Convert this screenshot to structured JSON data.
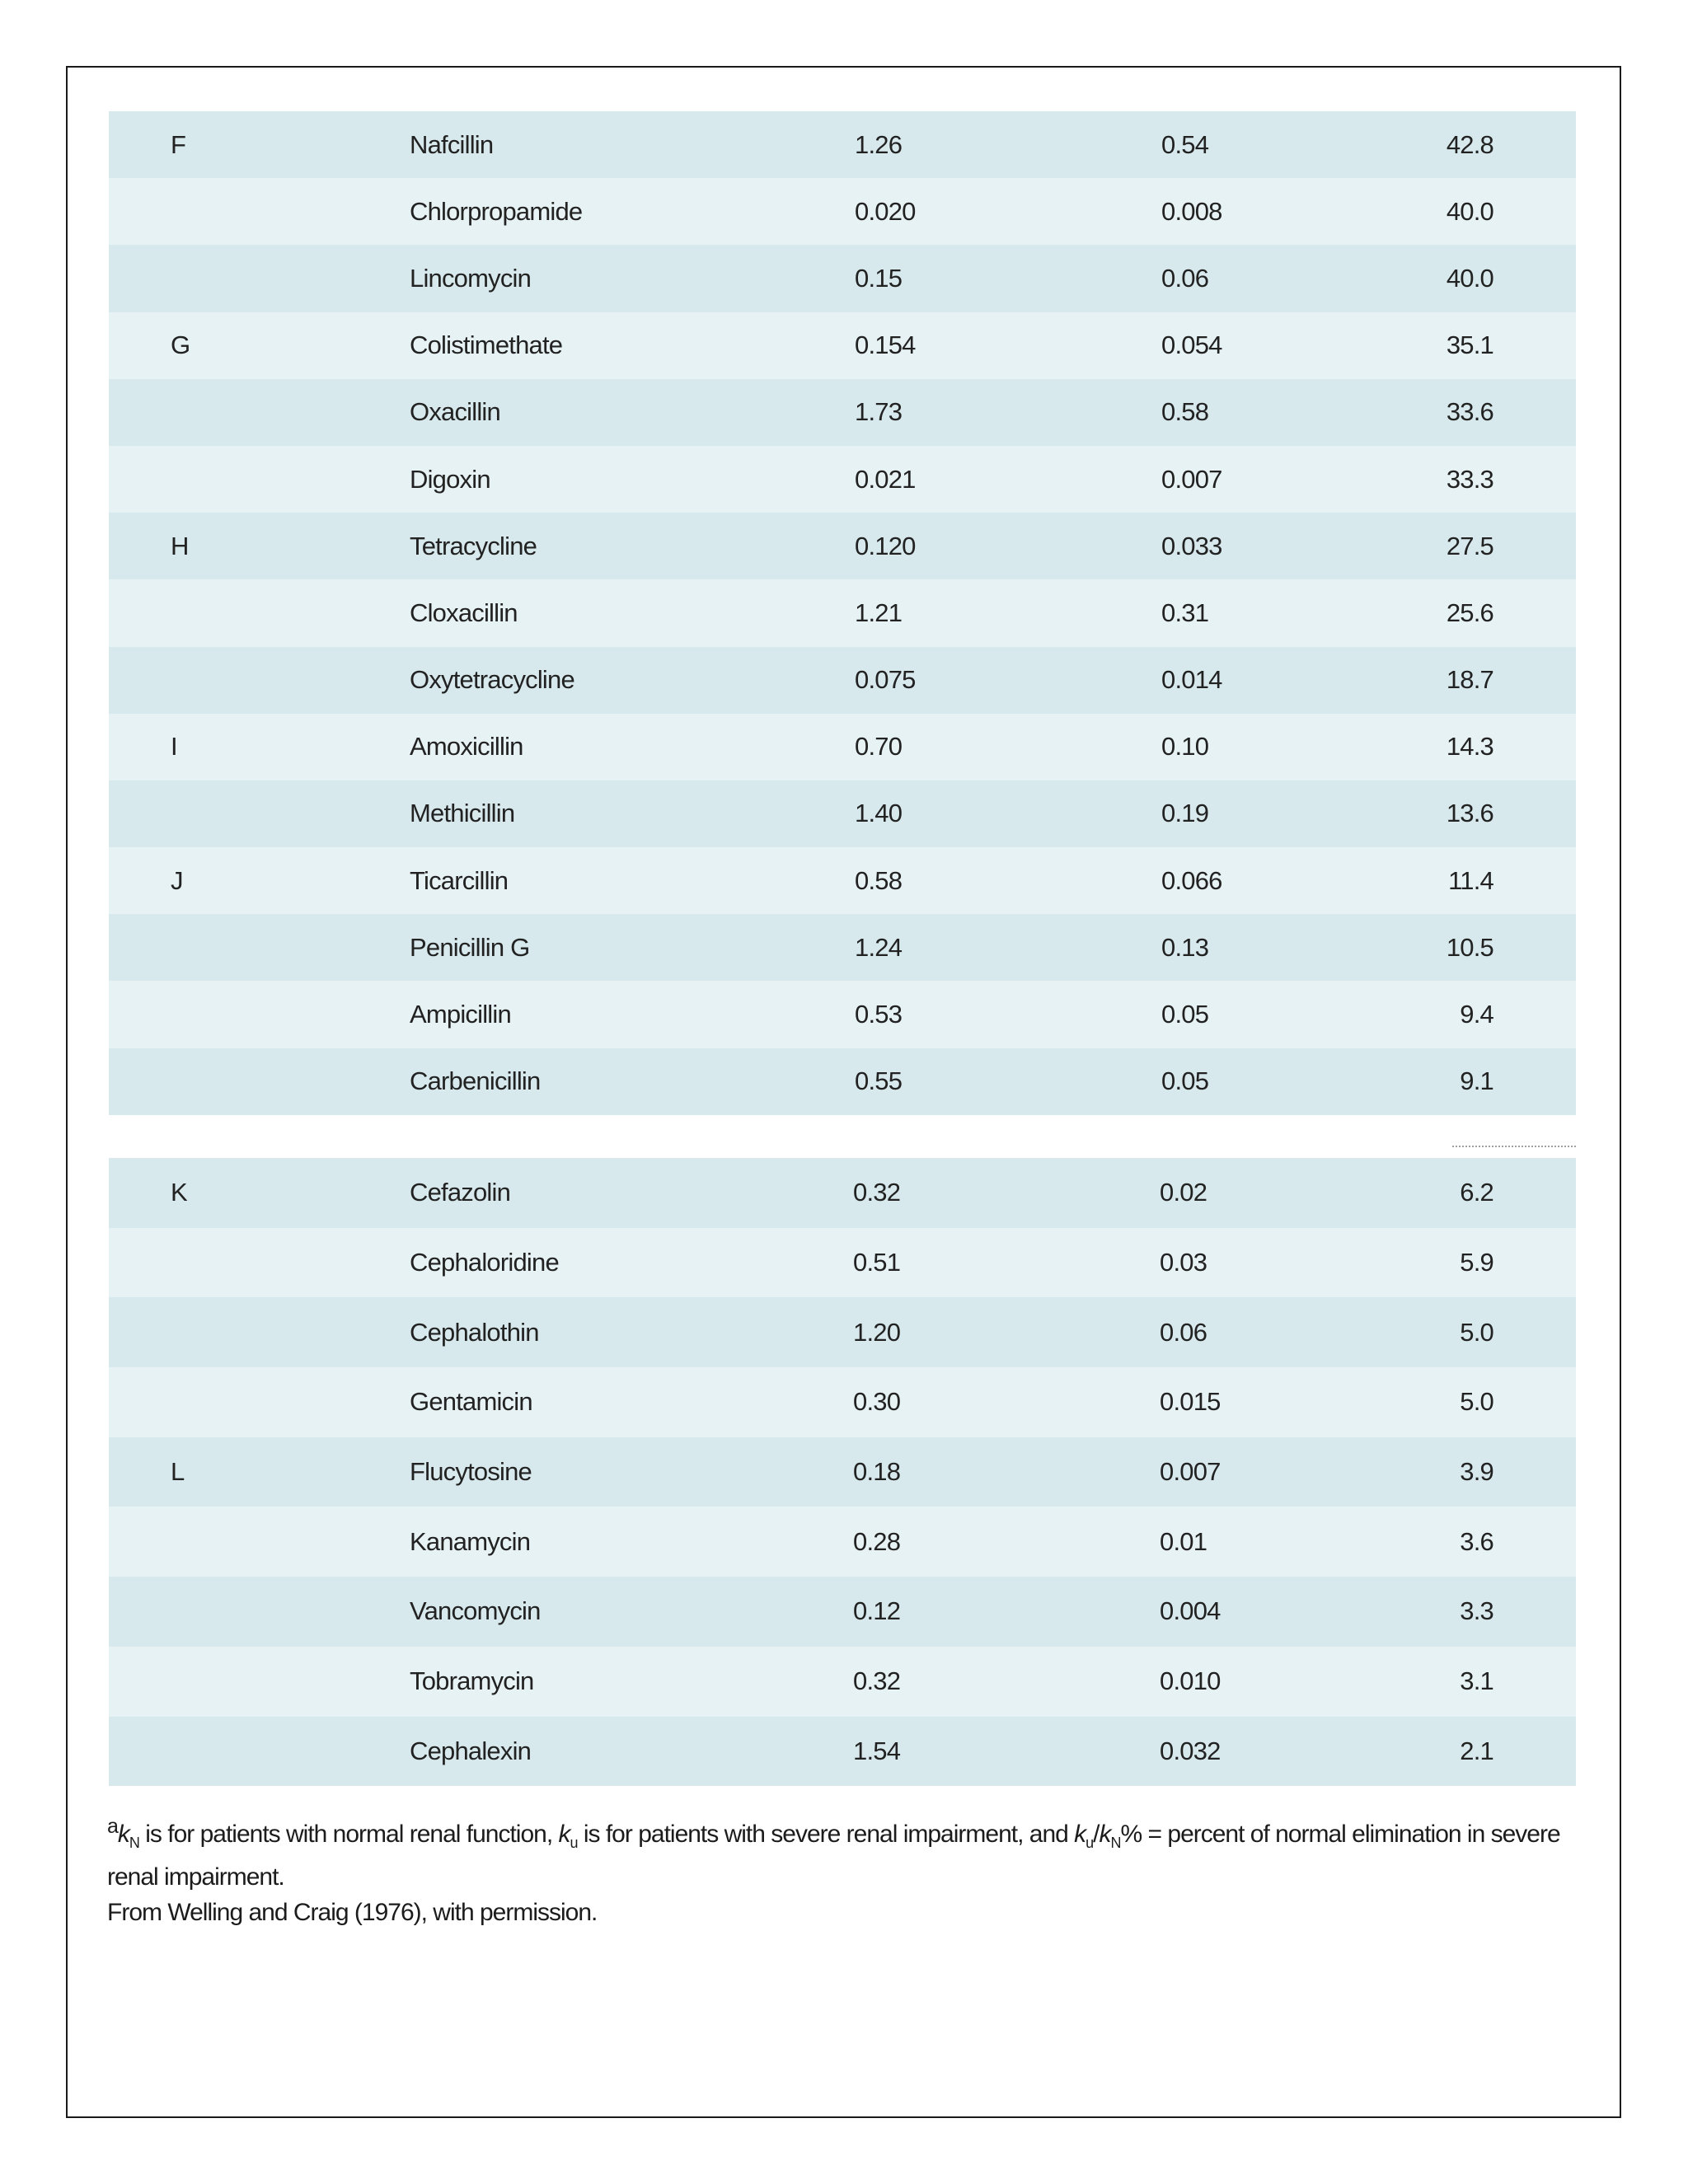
{
  "table_part_1": [
    {
      "group": "F",
      "drug": "Nafcillin",
      "kn": "1.26",
      "ku": "0.54",
      "ratio": "42.8"
    },
    {
      "group": "",
      "drug": "Chlorpropamide",
      "kn": "0.020",
      "ku": "0.008",
      "ratio": "40.0"
    },
    {
      "group": "",
      "drug": "Lincomycin",
      "kn": "0.15",
      "ku": "0.06",
      "ratio": "40.0"
    },
    {
      "group": "G",
      "drug": "Colistimethate",
      "kn": "0.154",
      "ku": "0.054",
      "ratio": "35.1"
    },
    {
      "group": "",
      "drug": "Oxacillin",
      "kn": "1.73",
      "ku": "0.58",
      "ratio": "33.6"
    },
    {
      "group": "",
      "drug": "Digoxin",
      "kn": "0.021",
      "ku": "0.007",
      "ratio": "33.3"
    },
    {
      "group": "H",
      "drug": "Tetracycline",
      "kn": "0.120",
      "ku": "0.033",
      "ratio": "27.5"
    },
    {
      "group": "",
      "drug": "Cloxacillin",
      "kn": "1.21",
      "ku": "0.31",
      "ratio": "25.6"
    },
    {
      "group": "",
      "drug": "Oxytetracycline",
      "kn": "0.075",
      "ku": "0.014",
      "ratio": "18.7"
    },
    {
      "group": "I",
      "drug": "Amoxicillin",
      "kn": "0.70",
      "ku": "0.10",
      "ratio": "14.3"
    },
    {
      "group": "",
      "drug": "Methicillin",
      "kn": "1.40",
      "ku": "0.19",
      "ratio": "13.6"
    },
    {
      "group": "J",
      "drug": "Ticarcillin",
      "kn": "0.58",
      "ku": "0.066",
      "ratio": "11.4"
    },
    {
      "group": "",
      "drug": "Penicillin G",
      "kn": "1.24",
      "ku": "0.13",
      "ratio": "10.5"
    },
    {
      "group": "",
      "drug": "Ampicillin",
      "kn": "0.53",
      "ku": "0.05",
      "ratio": "9.4"
    },
    {
      "group": "",
      "drug": "Carbenicillin",
      "kn": "0.55",
      "ku": "0.05",
      "ratio": "9.1"
    }
  ],
  "table_part_2": [
    {
      "group": "K",
      "drug": "Cefazolin",
      "kn": "0.32",
      "ku": "0.02",
      "ratio": "6.2"
    },
    {
      "group": "",
      "drug": "Cephaloridine",
      "kn": "0.51",
      "ku": "0.03",
      "ratio": "5.9"
    },
    {
      "group": "",
      "drug": "Cephalothin",
      "kn": "1.20",
      "ku": "0.06",
      "ratio": "5.0"
    },
    {
      "group": "",
      "drug": "Gentamicin",
      "kn": "0.30",
      "ku": "0.015",
      "ratio": "5.0"
    },
    {
      "group": "L",
      "drug": "Flucytosine",
      "kn": "0.18",
      "ku": "0.007",
      "ratio": "3.9"
    },
    {
      "group": "",
      "drug": "Kanamycin",
      "kn": "0.28",
      "ku": "0.01",
      "ratio": "3.6"
    },
    {
      "group": "",
      "drug": "Vancomycin",
      "kn": "0.12",
      "ku": "0.004",
      "ratio": "3.3"
    },
    {
      "group": "",
      "drug": "Tobramycin",
      "kn": "0.32",
      "ku": "0.010",
      "ratio": "3.1"
    },
    {
      "group": "",
      "drug": "Cephalexin",
      "kn": "1.54",
      "ku": "0.032",
      "ratio": "2.1"
    }
  ],
  "footnote": {
    "marker": "a",
    "k_symbol": "k",
    "sub_n": "N",
    "sub_u": "u",
    "part1": " is for patients with normal renal function, ",
    "part2": " is for patients with severe renal impairment, and ",
    "part3": "% = percent of normal elimination in severe renal impairment.",
    "source": "From Welling and Craig (1976), with permission."
  },
  "colors": {
    "row_dark": "#d7e9ed",
    "row_light": "#e7f2f4"
  }
}
